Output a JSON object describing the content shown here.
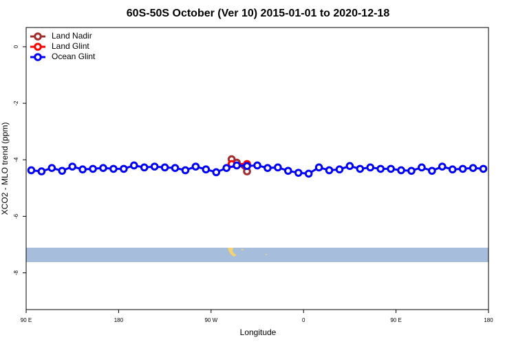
{
  "chart_data": {
    "type": "line",
    "title": "60S-50S October (Ver 10)   2015-01-01 to 2020-12-18",
    "x_label": "Longitude",
    "y_label": "XCO2 - MLO trend (ppm)",
    "xlim": [
      90,
      540
    ],
    "xticks": [
      {
        "value": 90,
        "label": "90 E"
      },
      180,
      {
        "value": 270,
        "label": "90 W"
      },
      {
        "value": 360,
        "label": "0"
      },
      {
        "value": 450,
        "label": "90 E"
      },
      {
        "value": 540,
        "label": "180"
      }
    ],
    "ylim": [
      -9.3,
      0.68
    ],
    "yticks": [
      0,
      -2,
      -4,
      -6,
      -8
    ],
    "legend": "top-left",
    "series": [
      {
        "name": "Land Nadir",
        "color": "#a52a2a",
        "x": [
          290,
          295,
          305
        ],
        "values": [
          -3.98,
          -4.1,
          -4.41
        ]
      },
      {
        "name": "Land Glint",
        "color": "#ff0000",
        "x": [
          290,
          305
        ],
        "values": [
          -4.15,
          -4.15
        ]
      },
      {
        "name": "Ocean Glint",
        "color": "#0000ff",
        "x": [
          95,
          105,
          115,
          125,
          135,
          145,
          155,
          165,
          175,
          185,
          195,
          205,
          215,
          225,
          235,
          245,
          255,
          265,
          275,
          285,
          295,
          305,
          315,
          325,
          335,
          345,
          355,
          365,
          375,
          385,
          395,
          405,
          415,
          425,
          435,
          445,
          455,
          465,
          475,
          485,
          495,
          505,
          515,
          525,
          535
        ],
        "values": [
          -4.37,
          -4.41,
          -4.29,
          -4.39,
          -4.24,
          -4.34,
          -4.32,
          -4.29,
          -4.32,
          -4.32,
          -4.2,
          -4.27,
          -4.24,
          -4.27,
          -4.29,
          -4.37,
          -4.24,
          -4.34,
          -4.44,
          -4.29,
          -4.2,
          -4.22,
          -4.2,
          -4.29,
          -4.27,
          -4.39,
          -4.46,
          -4.49,
          -4.27,
          -4.37,
          -4.34,
          -4.22,
          -4.32,
          -4.27,
          -4.32,
          -4.32,
          -4.37,
          -4.39,
          -4.27,
          -4.39,
          -4.24,
          -4.34,
          -4.32,
          -4.29,
          -4.32
        ]
      }
    ]
  }
}
